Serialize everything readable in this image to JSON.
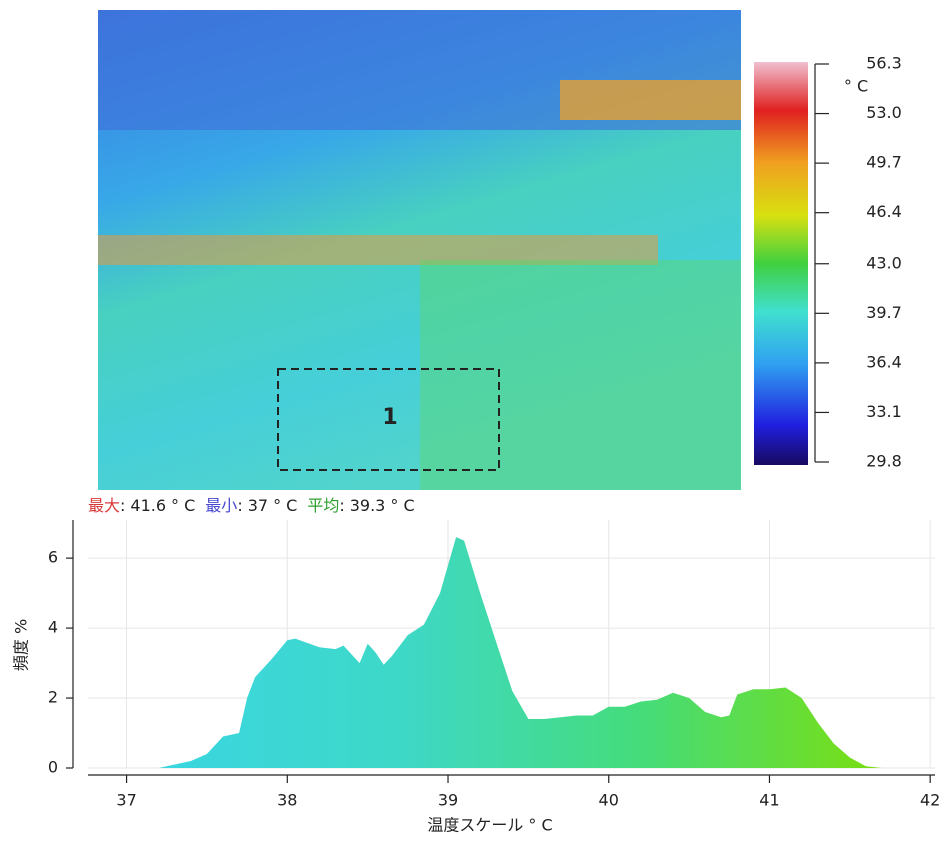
{
  "region_label": "1",
  "colorbar": {
    "unit": "° C",
    "lim": [
      29.8,
      56.3
    ],
    "ticks": [
      56.3,
      {
        "value": 53,
        "label": "53.0"
      },
      49.7,
      46.4,
      {
        "value": 43,
        "label": "43.0"
      },
      39.7,
      36.4,
      33.1,
      29.8
    ]
  },
  "stats": [
    {
      "label": "最大",
      "separator": ":",
      "value": 41.6,
      "unit": "° C",
      "color": "#d83a3a"
    },
    {
      "label": "最小",
      "separator": ":",
      "value": 37.0,
      "unit": "° C",
      "color": "#4a4ad0"
    },
    {
      "label": "平均",
      "separator": ":",
      "value": 39.3,
      "unit": "° C",
      "color": "#2fa02f"
    }
  ],
  "chart_data": {
    "type": "area",
    "xlabel": "温度スケール ° C",
    "ylabel": "頻度 %",
    "x": [
      37.2,
      37.4,
      37.5,
      37.6,
      37.7,
      37.75,
      37.8,
      37.9,
      38.0,
      38.05,
      38.2,
      38.3,
      38.35,
      38.45,
      38.5,
      38.55,
      38.6,
      38.65,
      38.75,
      38.85,
      38.95,
      39.05,
      39.1,
      39.2,
      39.3,
      39.4,
      39.5,
      39.6,
      39.8,
      39.9,
      40.0,
      40.1,
      40.2,
      40.3,
      40.4,
      40.5,
      40.6,
      40.7,
      40.75,
      40.8,
      40.9,
      41.0,
      41.1,
      41.2,
      41.3,
      41.4,
      41.5,
      41.6,
      41.7
    ],
    "values": [
      0,
      0.2,
      0.4,
      0.9,
      1.0,
      2.0,
      2.6,
      3.1,
      3.65,
      3.7,
      3.45,
      3.4,
      3.5,
      3.0,
      3.55,
      3.3,
      2.95,
      3.2,
      3.8,
      4.1,
      5.0,
      6.6,
      6.5,
      5.0,
      3.6,
      2.2,
      1.4,
      1.4,
      1.5,
      1.5,
      1.75,
      1.75,
      1.9,
      1.95,
      2.15,
      2.0,
      1.6,
      1.45,
      1.5,
      2.1,
      2.25,
      2.25,
      2.3,
      2.0,
      1.3,
      0.7,
      0.3,
      0.05,
      0
    ],
    "colors": [
      "#3ad6e0",
      "#3ed8c8",
      "#45dc7a",
      "#7ade10"
    ],
    "xlim": [
      36.76,
      42.03
    ],
    "ylim": [
      0,
      7.09
    ],
    "xticks": [
      37,
      38,
      39,
      40,
      41,
      42
    ],
    "yticks": [
      0,
      2,
      4,
      6
    ],
    "grid": true
  }
}
